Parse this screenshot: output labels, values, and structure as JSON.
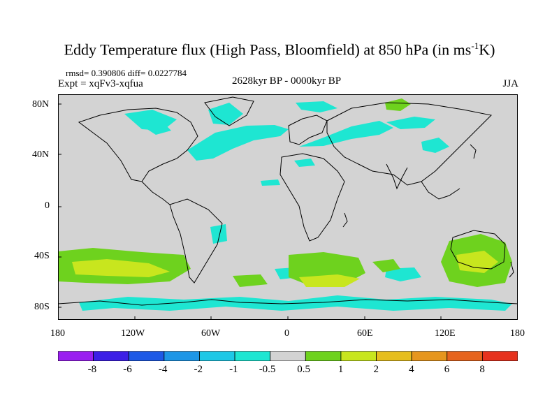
{
  "title": {
    "main": "Eddy Temperature flux (High Pass, Bloomfield) at 850 hPa (in ms",
    "sup": "-1",
    "end": "K)"
  },
  "stats": "rmsd= 0.390806 diff= 0.0227784",
  "experiment": "Expt = xqFv3-xqfua",
  "period": "2628kyr BP - 0000kyr BP",
  "season": "JJA",
  "map": {
    "projection": "cylindrical-equidistant",
    "lat_range": [
      -90,
      90
    ],
    "lon_range": [
      -180,
      180
    ],
    "lat_ticks": [
      "80N",
      "40N",
      "0",
      "40S",
      "80S"
    ],
    "lon_ticks": [
      "180",
      "120W",
      "60W",
      "0",
      "60E",
      "120E",
      "180"
    ],
    "background_color": "#d3d3d3",
    "coastline_color": "#000000"
  },
  "colorbar": {
    "labels": [
      "-8",
      "-6",
      "-4",
      "-2",
      "-1",
      "-0.5",
      "0.5",
      "1",
      "2",
      "4",
      "6",
      "8"
    ],
    "colors": [
      "#9a1ff0",
      "#3c1fe6",
      "#1e5ae6",
      "#1e96e6",
      "#1ec8e6",
      "#1ee6d2",
      "#d3d3d3",
      "#6ed21e",
      "#c8e61e",
      "#e6be1e",
      "#e6961e",
      "#e6641e",
      "#e6321e"
    ]
  },
  "chart_data": {
    "type": "heatmap",
    "variable": "Eddy Temperature flux difference",
    "units": "ms-1K",
    "levels": [
      -8,
      -6,
      -4,
      -2,
      -1,
      -0.5,
      0.5,
      1,
      2,
      4,
      6,
      8
    ],
    "notable_regions": [
      {
        "region": "North Atlantic",
        "sign": "negative",
        "approx_value": -0.7
      },
      {
        "region": "Northern Eurasia",
        "sign": "negative",
        "approx_value": -0.7
      },
      {
        "region": "Southern Ocean 30S-60S",
        "sign": "positive",
        "approx_value": 1.5
      },
      {
        "region": "Australia",
        "sign": "positive",
        "approx_value": 1.5
      },
      {
        "region": "Antarctic coast",
        "sign": "negative",
        "approx_value": -0.8
      }
    ]
  }
}
